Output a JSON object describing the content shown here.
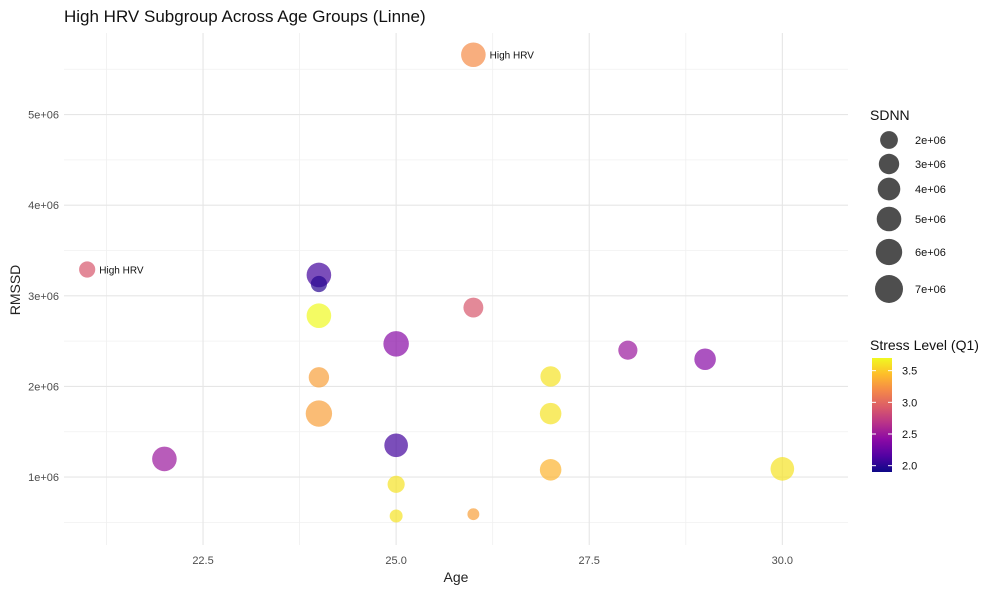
{
  "chart_data": {
    "type": "scatter",
    "title": "High HRV Subgroup Across Age Groups (Linne)",
    "xlabel": "Age",
    "ylabel": "RMSSD",
    "xlim": [
      20.7,
      30.85
    ],
    "ylim": [
      250000,
      5900000
    ],
    "grid": true,
    "x_ticks": [
      22.5,
      25.0,
      27.5,
      30.0
    ],
    "x_tick_labels": [
      "22.5",
      "25.0",
      "27.5",
      "30.0"
    ],
    "y_ticks": [
      1000000,
      2000000,
      3000000,
      4000000,
      5000000
    ],
    "y_tick_labels": [
      "1e+06",
      "2e+06",
      "3e+06",
      "4e+06",
      "5e+06"
    ],
    "size_legend": {
      "title": "SDNN",
      "values": [
        2000000,
        3000000,
        4000000,
        5000000,
        6000000,
        7000000
      ],
      "labels": [
        "2e+06",
        "3e+06",
        "4e+06",
        "5e+06",
        "6e+06",
        "7e+06"
      ]
    },
    "color_legend": {
      "title": "Stress Level (Q1)",
      "range": [
        1.9,
        3.7
      ],
      "ticks": [
        2.0,
        2.5,
        3.0,
        3.5
      ],
      "tick_labels": [
        "2.0",
        "2.5",
        "3.0",
        "3.5"
      ]
    },
    "points": [
      {
        "x": 21,
        "y": 3290000,
        "sdnn": 1500000,
        "stress": 2.9,
        "label": "High HRV"
      },
      {
        "x": 22,
        "y": 1200000,
        "sdnn": 5000000,
        "stress": 2.5,
        "label": ""
      },
      {
        "x": 24,
        "y": 3230000,
        "sdnn": 5000000,
        "stress": 2.1,
        "label": ""
      },
      {
        "x": 24,
        "y": 3130000,
        "sdnn": 1500000,
        "stress": 2.0,
        "label": ""
      },
      {
        "x": 24,
        "y": 2780000,
        "sdnn": 5000000,
        "stress": 3.7,
        "label": ""
      },
      {
        "x": 24,
        "y": 2100000,
        "sdnn": 3000000,
        "stress": 3.3,
        "label": ""
      },
      {
        "x": 24,
        "y": 1700000,
        "sdnn": 6000000,
        "stress": 3.3,
        "label": ""
      },
      {
        "x": 25,
        "y": 2470000,
        "sdnn": 5500000,
        "stress": 2.4,
        "label": ""
      },
      {
        "x": 25,
        "y": 1350000,
        "sdnn": 4500000,
        "stress": 2.1,
        "label": ""
      },
      {
        "x": 25,
        "y": 920000,
        "sdnn": 1800000,
        "stress": 3.6,
        "label": ""
      },
      {
        "x": 25,
        "y": 570000,
        "sdnn": 700000,
        "stress": 3.6,
        "label": ""
      },
      {
        "x": 26,
        "y": 5660000,
        "sdnn": 5000000,
        "stress": 3.2,
        "label": "High HRV"
      },
      {
        "x": 26,
        "y": 2870000,
        "sdnn": 2800000,
        "stress": 2.9,
        "label": ""
      },
      {
        "x": 26,
        "y": 590000,
        "sdnn": 500000,
        "stress": 3.3,
        "label": ""
      },
      {
        "x": 27,
        "y": 2110000,
        "sdnn": 3000000,
        "stress": 3.6,
        "label": ""
      },
      {
        "x": 27,
        "y": 1700000,
        "sdnn": 3500000,
        "stress": 3.6,
        "label": ""
      },
      {
        "x": 27,
        "y": 1080000,
        "sdnn": 3500000,
        "stress": 3.4,
        "label": ""
      },
      {
        "x": 28,
        "y": 2400000,
        "sdnn": 2500000,
        "stress": 2.5,
        "label": ""
      },
      {
        "x": 29,
        "y": 2300000,
        "sdnn": 3500000,
        "stress": 2.4,
        "label": ""
      },
      {
        "x": 30,
        "y": 1090000,
        "sdnn": 4500000,
        "stress": 3.6,
        "label": ""
      }
    ]
  }
}
